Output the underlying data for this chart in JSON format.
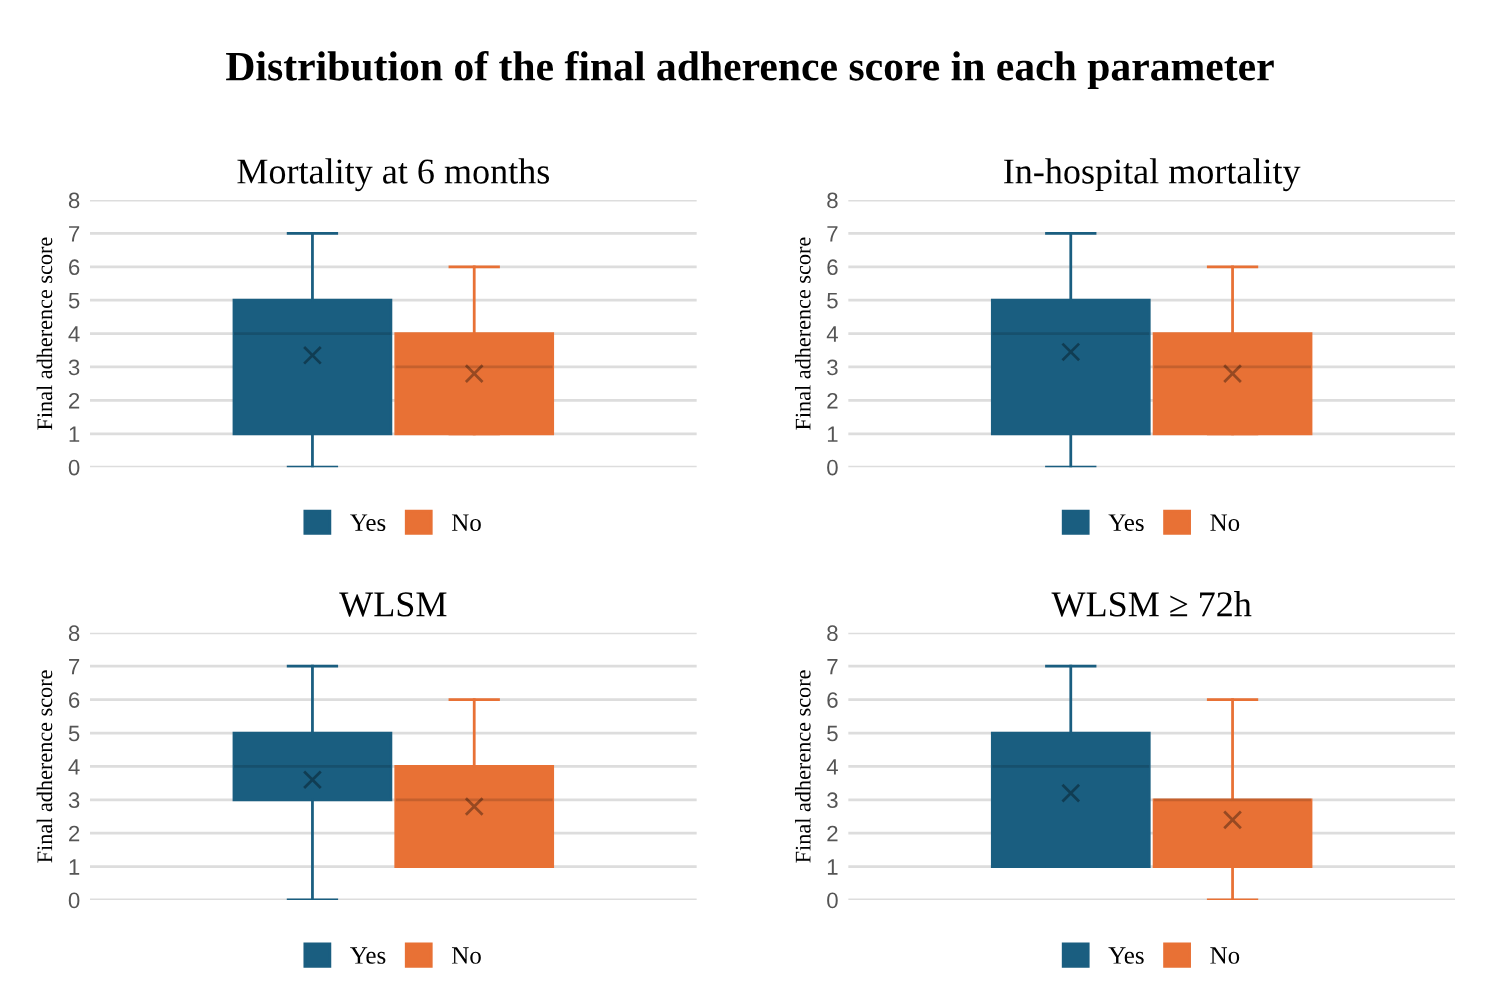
{
  "chart_data": [
    {
      "type": "box",
      "title": "Mortality at 6 months",
      "ylabel": "Final adherence score",
      "annotations": [
        "Distribution of the final adherence score in each parameter"
      ],
      "categories": [
        null
      ],
      "ylim": [
        0,
        8
      ],
      "yticks": [
        0,
        1,
        2,
        3,
        4,
        5,
        6,
        7,
        8
      ],
      "grid": "y",
      "legend": "bottom",
      "series": [
        {
          "name": "Yes",
          "color": "#1a5e80",
          "boxes": [
            {
              "low": 0,
              "q1": 1,
              "median": 4,
              "q3": 5,
              "high": 7,
              "mean": 3.35
            }
          ]
        },
        {
          "name": "No",
          "color": "#e87135",
          "boxes": [
            {
              "low": 1,
              "q1": 1,
              "median": 3,
              "q3": 4,
              "high": 6,
              "mean": 2.8
            }
          ]
        }
      ]
    },
    {
      "type": "box",
      "title": "WLSM",
      "ylabel": "Final adherence score",
      "categories": [
        null
      ],
      "ylim": [
        0,
        8
      ],
      "yticks": [
        0,
        1,
        2,
        3,
        4,
        5,
        6,
        7,
        8
      ],
      "grid": "y",
      "legend": "bottom",
      "series": [
        {
          "name": "Yes",
          "color": "#1a5e80",
          "boxes": [
            {
              "low": 0,
              "q1": 3,
              "median": 4,
              "q3": 5,
              "high": 7,
              "mean": 3.6
            }
          ]
        },
        {
          "name": "No",
          "color": "#e87135",
          "boxes": [
            {
              "low": 1,
              "q1": 1,
              "median": 3,
              "q3": 4,
              "high": 6,
              "mean": 2.8
            }
          ]
        }
      ]
    },
    {
      "type": "box",
      "title": "In-hospital mortality",
      "ylabel": "Final adherence score",
      "categories": [
        null
      ],
      "ylim": [
        0,
        8
      ],
      "yticks": [
        0,
        1,
        2,
        3,
        4,
        5,
        6,
        7,
        8
      ],
      "grid": "y",
      "legend": "bottom",
      "series": [
        {
          "name": "Yes",
          "color": "#1a5e80",
          "boxes": [
            {
              "low": 0,
              "q1": 1,
              "median": 4,
              "q3": 5,
              "high": 7,
              "mean": 3.45
            }
          ]
        },
        {
          "name": "No",
          "color": "#e87135",
          "boxes": [
            {
              "low": 1,
              "q1": 1,
              "median": 3,
              "q3": 4,
              "high": 6,
              "mean": 2.8
            }
          ]
        }
      ]
    },
    {
      "type": "box",
      "title": "WLSM ≥ 72h",
      "ylabel": "Final adherence score",
      "categories": [
        null
      ],
      "ylim": [
        0,
        8
      ],
      "yticks": [
        0,
        1,
        2,
        3,
        4,
        5,
        6,
        7,
        8
      ],
      "grid": "y",
      "legend": "bottom",
      "series": [
        {
          "name": "Yes",
          "color": "#1a5e80",
          "boxes": [
            {
              "low": 1,
              "q1": 1,
              "median": 4,
              "q3": 5,
              "high": 7,
              "mean": 3.2
            }
          ]
        },
        {
          "name": "No",
          "color": "#e87135",
          "boxes": [
            {
              "low": 0,
              "q1": 1,
              "median": 3,
              "q3": 3,
              "high": 6,
              "mean": 2.4
            }
          ]
        }
      ]
    }
  ]
}
